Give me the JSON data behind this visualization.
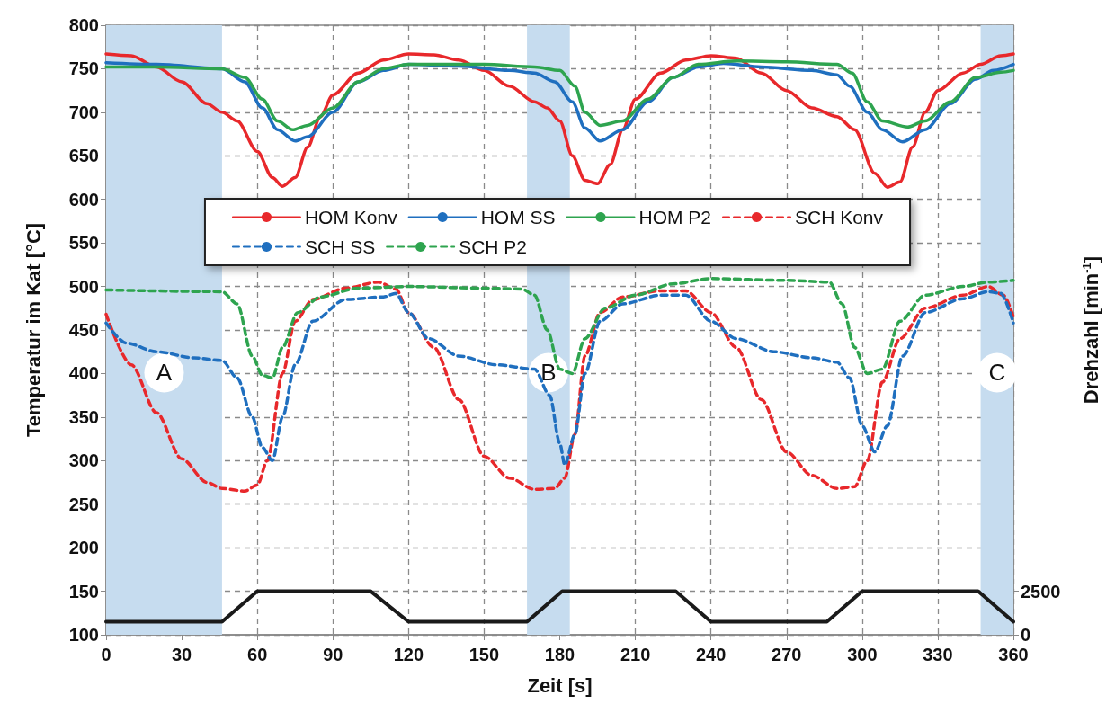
{
  "chart_data": {
    "type": "line",
    "xlabel": "Zeit [s]",
    "ylabel": "Temperatur im Kat [°C]",
    "y2label": "Drehzahl [min$^{-1}$]",
    "xlim": [
      0,
      360
    ],
    "xticks": [
      0,
      30,
      60,
      90,
      120,
      150,
      180,
      210,
      240,
      270,
      300,
      330,
      360
    ],
    "ylim": [
      100,
      800
    ],
    "yticks": [
      100,
      150,
      200,
      250,
      300,
      350,
      400,
      450,
      500,
      550,
      600,
      650,
      700,
      750,
      800
    ],
    "y2lim": [
      0,
      35000
    ],
    "y2ticks": [
      0,
      2500
    ],
    "grid": true,
    "legend": "center",
    "marker": "none",
    "bands": [
      {
        "axis": "x",
        "from": 0,
        "to": 46,
        "label": "A",
        "color": "#c6dcef"
      },
      {
        "axis": "x",
        "from": 167,
        "to": 184,
        "label": "B",
        "color": "#c6dcef"
      },
      {
        "axis": "x",
        "from": 347,
        "to": 360,
        "label": "C",
        "color": "#c6dcef"
      }
    ],
    "series": [
      {
        "name": "HOM Konv",
        "color": "#e8282b",
        "line_style": "solid",
        "x": [
          0,
          10,
          20,
          30,
          40,
          46,
          52,
          60,
          66,
          70,
          75,
          80,
          85,
          90,
          100,
          110,
          120,
          130,
          140,
          150,
          160,
          170,
          175,
          180,
          185,
          190,
          195,
          200,
          205,
          210,
          220,
          230,
          240,
          250,
          260,
          270,
          280,
          290,
          297,
          305,
          310,
          315,
          320,
          325,
          330,
          340,
          347,
          355,
          360
        ],
        "values": [
          767,
          765,
          752,
          735,
          710,
          700,
          690,
          655,
          625,
          615,
          625,
          660,
          695,
          720,
          745,
          760,
          767,
          766,
          760,
          748,
          730,
          712,
          705,
          690,
          650,
          622,
          618,
          640,
          680,
          715,
          745,
          760,
          765,
          762,
          745,
          725,
          705,
          695,
          680,
          630,
          614,
          620,
          660,
          700,
          725,
          745,
          755,
          765,
          767
        ]
      },
      {
        "name": "HOM SS",
        "color": "#1f6fbf",
        "line_style": "solid",
        "x": [
          0,
          20,
          46,
          55,
          62,
          68,
          75,
          80,
          90,
          100,
          110,
          120,
          140,
          160,
          170,
          178,
          185,
          190,
          196,
          205,
          215,
          225,
          235,
          245,
          260,
          280,
          290,
          295,
          302,
          308,
          316,
          325,
          335,
          345,
          352,
          360
        ],
        "values": [
          757,
          755,
          750,
          735,
          705,
          680,
          667,
          672,
          700,
          735,
          748,
          755,
          753,
          748,
          745,
          735,
          712,
          682,
          667,
          680,
          712,
          740,
          752,
          756,
          752,
          748,
          743,
          730,
          700,
          680,
          666,
          680,
          710,
          738,
          748,
          755
        ]
      },
      {
        "name": "HOM P2",
        "color": "#2ea44f",
        "line_style": "solid",
        "x": [
          0,
          20,
          46,
          55,
          62,
          68,
          74,
          80,
          90,
          100,
          110,
          120,
          150,
          170,
          180,
          186,
          190,
          196,
          205,
          215,
          225,
          235,
          250,
          270,
          290,
          296,
          302,
          308,
          318,
          325,
          335,
          345,
          355,
          360
        ],
        "values": [
          752,
          752,
          750,
          740,
          715,
          690,
          680,
          685,
          705,
          735,
          750,
          755,
          755,
          752,
          748,
          730,
          700,
          685,
          690,
          715,
          740,
          755,
          759,
          758,
          755,
          745,
          712,
          690,
          683,
          690,
          712,
          740,
          746,
          748
        ]
      },
      {
        "name": "SCH Konv",
        "color": "#e8282b",
        "line_style": "dashed",
        "x": [
          0,
          10,
          20,
          30,
          40,
          46,
          55,
          60,
          64,
          70,
          75,
          82,
          95,
          108,
          115,
          120,
          130,
          140,
          150,
          160,
          170,
          178,
          182,
          186,
          190,
          196,
          205,
          220,
          230,
          240,
          250,
          260,
          270,
          280,
          290,
          297,
          302,
          308,
          315,
          325,
          340,
          350,
          356,
          360
        ],
        "values": [
          468,
          410,
          355,
          302,
          275,
          268,
          265,
          272,
          300,
          400,
          460,
          485,
          498,
          505,
          497,
          470,
          430,
          370,
          305,
          280,
          267,
          268,
          280,
          330,
          420,
          470,
          488,
          495,
          495,
          470,
          430,
          370,
          310,
          283,
          268,
          270,
          300,
          390,
          440,
          475,
          490,
          500,
          490,
          465
        ]
      },
      {
        "name": "SCH SS",
        "color": "#1f6fbf",
        "line_style": "dashed",
        "x": [
          0,
          8,
          20,
          35,
          46,
          52,
          58,
          62,
          66,
          70,
          75,
          82,
          95,
          110,
          115,
          120,
          128,
          140,
          155,
          170,
          176,
          180,
          182,
          186,
          190,
          196,
          205,
          220,
          230,
          240,
          250,
          265,
          280,
          290,
          295,
          300,
          305,
          310,
          316,
          325,
          340,
          350,
          355,
          360
        ],
        "values": [
          458,
          435,
          425,
          418,
          415,
          395,
          350,
          315,
          300,
          350,
          410,
          460,
          485,
          488,
          492,
          470,
          440,
          420,
          410,
          405,
          375,
          320,
          295,
          330,
          400,
          460,
          480,
          490,
          490,
          460,
          440,
          425,
          418,
          413,
          395,
          340,
          310,
          340,
          420,
          470,
          486,
          494,
          492,
          458
        ]
      },
      {
        "name": "SCH P2",
        "color": "#2ea44f",
        "line_style": "dashed",
        "x": [
          0,
          46,
          52,
          58,
          62,
          66,
          70,
          76,
          85,
          100,
          120,
          150,
          165,
          170,
          175,
          180,
          185,
          190,
          198,
          210,
          225,
          240,
          270,
          287,
          292,
          297,
          302,
          308,
          315,
          325,
          340,
          350,
          360
        ],
        "values": [
          496,
          494,
          480,
          420,
          398,
          395,
          430,
          470,
          488,
          498,
          500,
          498,
          497,
          490,
          450,
          405,
          400,
          440,
          475,
          490,
          503,
          509,
          507,
          505,
          480,
          430,
          400,
          405,
          460,
          490,
          500,
          505,
          507
        ]
      },
      {
        "color": "#1a1a1a",
        "line_style": "solid",
        "axis": "y2",
        "x": [
          0,
          46,
          60,
          105,
          120,
          167,
          181,
          226,
          240,
          286,
          300,
          346,
          360
        ],
        "values": [
          750,
          750,
          2500,
          2500,
          750,
          750,
          2500,
          2500,
          750,
          750,
          2500,
          2500,
          750
        ]
      }
    ]
  }
}
